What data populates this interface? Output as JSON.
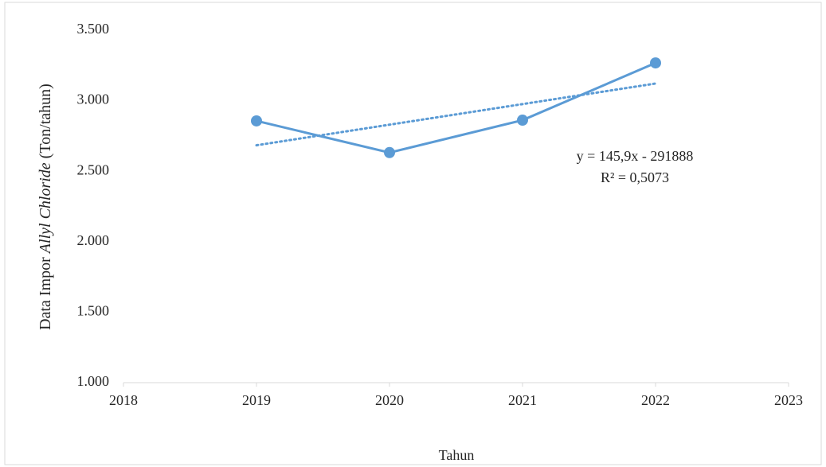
{
  "chart_data": {
    "type": "line",
    "x": [
      2019,
      2020,
      2021,
      2022
    ],
    "series": [
      {
        "color": "#5b9bd5",
        "values": [
          2857,
          2632,
          2862,
          3268
        ]
      }
    ],
    "trendline": {
      "x": [
        2019,
        2022
      ],
      "values": [
        2684,
        3122
      ],
      "color": "#5b9bd5"
    },
    "xlim": [
      2018,
      2023
    ],
    "xticks": [
      2018,
      2019,
      2020,
      2021,
      2022,
      2023
    ],
    "ylim": [
      1000,
      3500
    ],
    "yticks": [
      {
        "value": 1000,
        "label": "1.000"
      },
      {
        "value": 1500,
        "label": "1.500"
      },
      {
        "value": 2000,
        "label": "2.000"
      },
      {
        "value": 2500,
        "label": "2.500"
      },
      {
        "value": 3000,
        "label": "3.000"
      },
      {
        "value": 3500,
        "label": "3.500"
      }
    ],
    "xlabel": "Tahun",
    "ylabel": [
      "Data Impor ",
      "Allyl Chloride",
      " (Ton/tahun)"
    ],
    "annotations": [
      "y = 145,9x - 291888",
      "R² = 0,5073"
    ],
    "grid": false
  }
}
